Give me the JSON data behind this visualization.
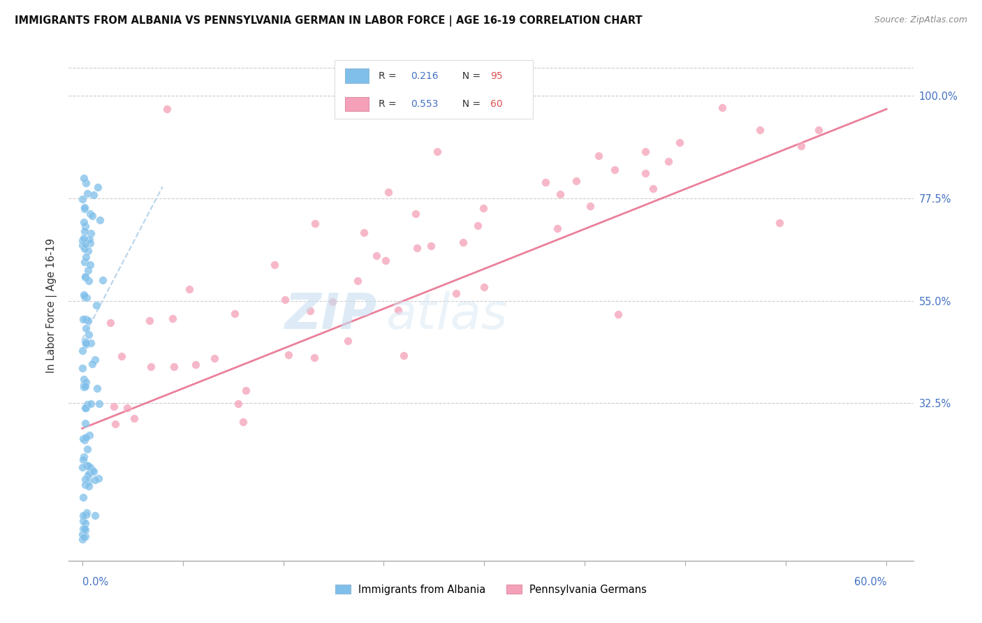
{
  "title": "IMMIGRANTS FROM ALBANIA VS PENNSYLVANIA GERMAN IN LABOR FORCE | AGE 16-19 CORRELATION CHART",
  "source": "Source: ZipAtlas.com",
  "ylabel": "In Labor Force | Age 16-19",
  "ytick_values": [
    0.325,
    0.55,
    0.775,
    1.0
  ],
  "ytick_labels": [
    "32.5%",
    "55.0%",
    "77.5%",
    "100.0%"
  ],
  "xlim": [
    0.0,
    0.6
  ],
  "ylim": [
    0.0,
    1.08
  ],
  "legend_r1": "0.216",
  "legend_n1": "95",
  "legend_r2": "0.553",
  "legend_n2": "60",
  "color_albania": "#7fbfea",
  "color_penn": "#f4a0b8",
  "color_albania_line": "#b0cfe8",
  "color_penn_line": "#e8728f",
  "watermark_zip": "ZIP",
  "watermark_atlas": "atlas",
  "legend_label1": "Immigrants from Albania",
  "legend_label2": "Pennsylvania Germans"
}
